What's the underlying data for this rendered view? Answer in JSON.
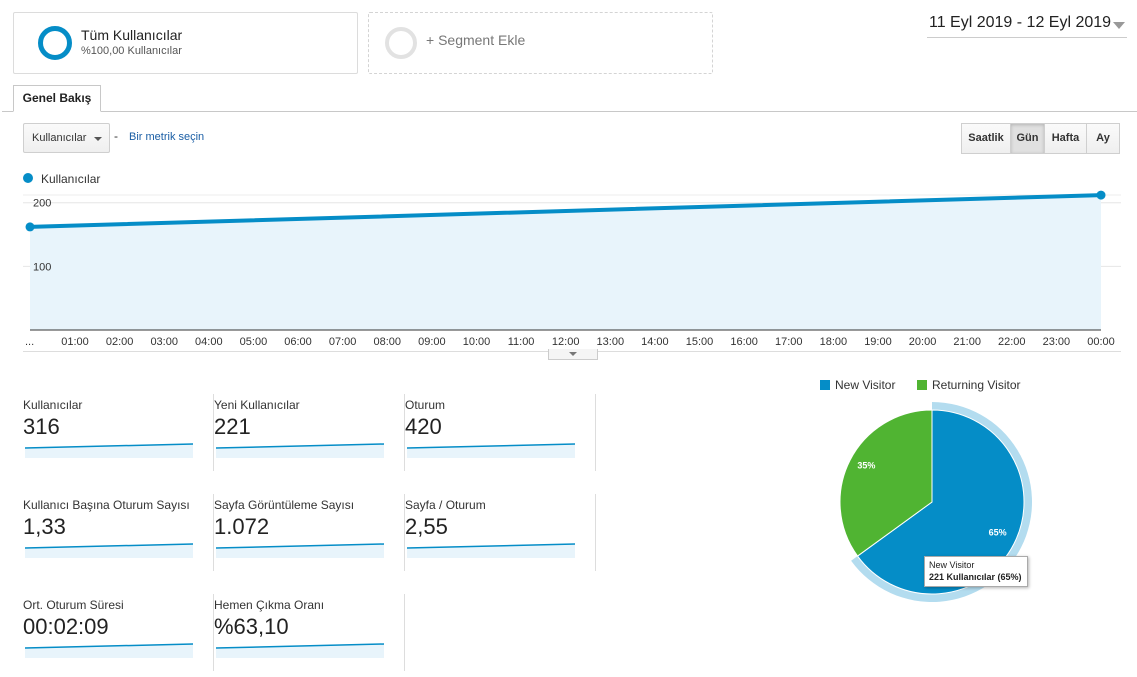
{
  "segments": {
    "active_title": "Tüm Kullanıcılar",
    "active_subtitle": "%100,00 Kullanıcılar",
    "add_label": "+ Segment Ekle"
  },
  "date_range": "11 Eyl 2019 - 12 Eyl 2019",
  "tabs": {
    "overview": "Genel Bakış"
  },
  "toolbar": {
    "metric_select": "Kullanıcılar",
    "separator": "-",
    "metric_link": "Bir metrik seçin",
    "granularity": [
      "Saatlik",
      "Gün",
      "Hafta",
      "Ay"
    ],
    "granularity_active": "Gün"
  },
  "colors": {
    "series": "#058dc7",
    "area": "#e8f4fb",
    "new_visitor": "#058dc7",
    "returning_visitor": "#50b432"
  },
  "chart_data": [
    {
      "type": "area",
      "series": [
        {
          "name": "Kullanıcılar",
          "values": [
            162,
            212
          ]
        }
      ],
      "ytick_labels": [
        "200",
        "100"
      ],
      "ylim": [
        0,
        220
      ],
      "xtick_labels": [
        "...",
        "01:00",
        "02:00",
        "03:00",
        "04:00",
        "05:00",
        "06:00",
        "07:00",
        "08:00",
        "09:00",
        "10:00",
        "11:00",
        "12:00",
        "13:00",
        "14:00",
        "15:00",
        "16:00",
        "17:00",
        "18:00",
        "19:00",
        "20:00",
        "21:00",
        "22:00",
        "23:00",
        "00:00"
      ],
      "grid": true
    },
    {
      "type": "pie",
      "categories": [
        "New Visitor",
        "Returning Visitor"
      ],
      "values": [
        65,
        35
      ],
      "labels": [
        "65%",
        "35%"
      ],
      "tooltip": {
        "title": "New Visitor",
        "value": "221 Kullanıcılar (65%)"
      }
    }
  ],
  "metrics": [
    {
      "label": "Kullanıcılar",
      "value": "316"
    },
    {
      "label": "Yeni Kullanıcılar",
      "value": "221"
    },
    {
      "label": "Oturum",
      "value": "420"
    },
    {
      "label": "Kullanıcı Başına Oturum Sayısı",
      "value": "1,33"
    },
    {
      "label": "Sayfa Görüntüleme Sayısı",
      "value": "1.072"
    },
    {
      "label": "Sayfa / Oturum",
      "value": "2,55"
    },
    {
      "label": "Ort. Oturum Süresi",
      "value": "00:02:09"
    },
    {
      "label": "Hemen Çıkma Oranı",
      "value": "%63,10"
    }
  ]
}
